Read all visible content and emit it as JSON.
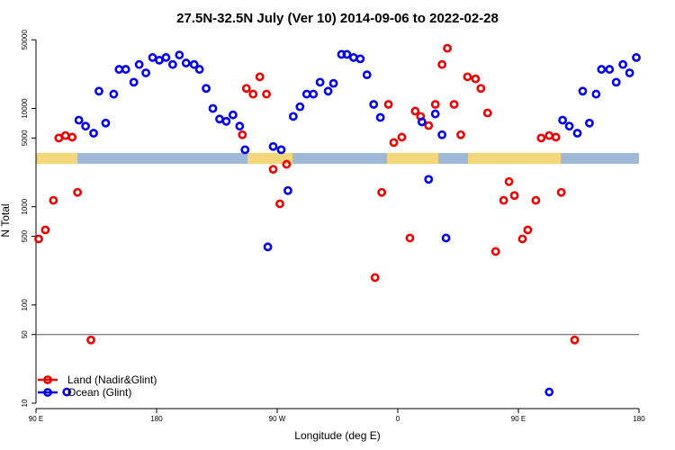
{
  "chart_data": {
    "type": "scatter",
    "title": "27.5N-32.5N July (Ver 10)   2014-09-06 to 2022-02-28",
    "x_label": "Longitude (deg E)",
    "y_label": "N Total",
    "log_y": true,
    "legend": "bottom-left",
    "hline": 50,
    "xlim": [
      90,
      540
    ],
    "xticks": [
      {
        "value": 90,
        "label": "90 E"
      },
      180,
      {
        "value": 270,
        "label": "90 W"
      },
      {
        "value": 360,
        "label": "0"
      },
      {
        "value": 450,
        "label": "90 E"
      },
      {
        "value": 540,
        "label": "180"
      }
    ],
    "ylim": [
      10,
      57000
    ],
    "yticks": [
      10,
      50,
      100,
      500,
      1000,
      5000,
      10000,
      50000
    ],
    "series": [
      {
        "name": "Land (Nadir&Glint)",
        "color": "#ee0000",
        "x": [
          92,
          97,
          103,
          107,
          112,
          117,
          121,
          131,
          244,
          247,
          252,
          257,
          262,
          267,
          272,
          277,
          343,
          348,
          353,
          357,
          363,
          369,
          373,
          377,
          383,
          388,
          393,
          397,
          402,
          407,
          412,
          418,
          422,
          427,
          433,
          439,
          443,
          447,
          453,
          457,
          463,
          467,
          473,
          478,
          482,
          492
        ],
        "values": [
          470,
          580,
          1160,
          5000,
          5300,
          5100,
          1400,
          44,
          5400,
          16000,
          14000,
          21000,
          14000,
          2400,
          1070,
          2700,
          190,
          1400,
          11000,
          4500,
          5100,
          480,
          9400,
          8300,
          6700,
          11000,
          28000,
          41000,
          11000,
          5400,
          21000,
          20000,
          16000,
          9000,
          350,
          1160,
          1800,
          1300,
          470,
          580,
          1160,
          5000,
          5300,
          5100,
          1400,
          44
        ]
      },
      {
        "name": "Ocean (Glint)",
        "color": "#0000ee",
        "x": [
          113,
          122,
          127,
          133,
          137,
          142,
          148,
          152,
          157,
          163,
          167,
          172,
          177,
          182,
          187,
          192,
          197,
          202,
          208,
          212,
          217,
          222,
          227,
          232,
          237,
          242,
          246,
          263,
          267,
          273,
          278,
          282,
          287,
          292,
          297,
          302,
          308,
          312,
          318,
          322,
          327,
          332,
          337,
          342,
          347,
          378,
          388,
          393,
          383,
          396,
          473,
          483,
          488,
          494,
          498,
          503,
          508,
          512,
          518,
          523,
          528,
          533,
          538
        ],
        "values": [
          13,
          7600,
          6600,
          5600,
          15000,
          7100,
          14000,
          25000,
          25000,
          18500,
          28000,
          23000,
          33000,
          31000,
          33000,
          28000,
          35000,
          29000,
          28000,
          25000,
          16000,
          10000,
          7800,
          7400,
          8600,
          6600,
          3800,
          390,
          4100,
          3800,
          1460,
          8300,
          10400,
          14000,
          14000,
          18500,
          15000,
          18000,
          35500,
          35500,
          33000,
          32000,
          22000,
          11000,
          8100,
          7300,
          8800,
          5400,
          1900,
          480,
          13,
          7600,
          6600,
          5600,
          15000,
          7100,
          14000,
          25000,
          25000,
          18500,
          28000,
          23000,
          33000
        ]
      }
    ]
  }
}
